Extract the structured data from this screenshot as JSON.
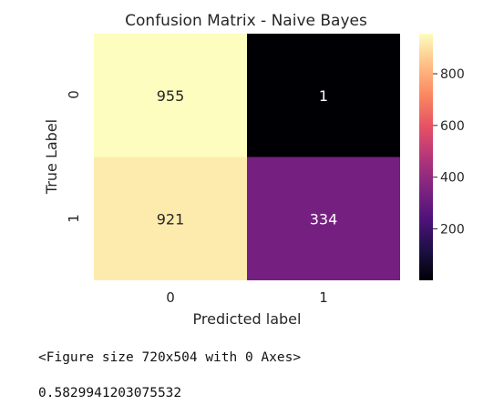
{
  "chart_data": {
    "type": "heatmap",
    "title": "Confusion Matrix - Naive Bayes",
    "xlabel": "Predicted label",
    "ylabel": "True Label",
    "x_tick_labels": [
      "0",
      "1"
    ],
    "y_tick_labels": [
      "0",
      "1"
    ],
    "values": [
      [
        955,
        1
      ],
      [
        921,
        334
      ]
    ],
    "colormap": "magma",
    "colorbar": {
      "ticks": [
        200,
        400,
        600,
        800
      ],
      "tick_labels": [
        "200",
        "400",
        "600",
        "800"
      ],
      "range": [
        1,
        955
      ]
    },
    "grid": false
  },
  "output": {
    "figure_text": "<Figure size 720x504 with 0 Axes>",
    "score_text": "0.5829941203075532"
  }
}
